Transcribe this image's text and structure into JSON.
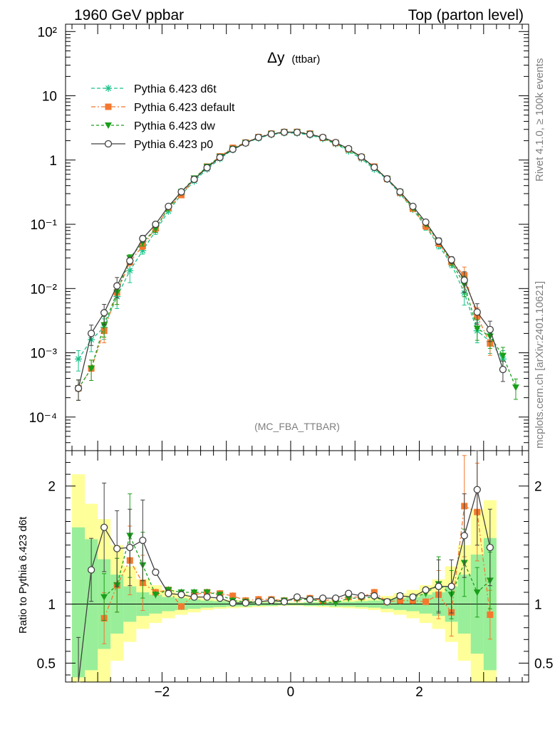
{
  "header": {
    "left": "1960 GeV ppbar",
    "right": "Top (parton level)"
  },
  "side": {
    "right_top": "Rivet 4.1.0, ≥ 100k events",
    "right_bottom": "mcplots.cern.ch [arXiv:2401.10621]"
  },
  "chart_data": {
    "type": "line",
    "title": "Δy",
    "title_sub": "(ttbar)",
    "watermark": "(MC_FBA_TTBAR)",
    "ratio_ylabel": "Ratio to Pythia 6.423 d6t",
    "xlim": [
      -3.5,
      3.7
    ],
    "ylim_log": [
      3e-05,
      130
    ],
    "ratio_ylim": [
      0.34,
      2.3
    ],
    "x_ticks": [
      "−2",
      "0",
      "2"
    ],
    "x_tick_values": [
      -2,
      0,
      2
    ],
    "y_ticks": [
      "10⁻⁴",
      "10⁻³",
      "10⁻²",
      "10⁻¹",
      "1",
      "10",
      "10²"
    ],
    "y_tick_values": [
      0.0001,
      0.001,
      0.01,
      0.1,
      1,
      10,
      100
    ],
    "ratio_ticks": [
      "0.5",
      "1",
      "2"
    ],
    "ratio_tick_values": [
      0.5,
      1,
      2
    ],
    "x": [
      -3.3,
      -3.1,
      -2.9,
      -2.7,
      -2.5,
      -2.3,
      -2.1,
      -1.9,
      -1.7,
      -1.5,
      -1.3,
      -1.1,
      -0.9,
      -0.7,
      -0.5,
      -0.3,
      -0.1,
      0.1,
      0.3,
      0.5,
      0.7,
      0.9,
      1.1,
      1.3,
      1.5,
      1.7,
      1.9,
      2.1,
      2.3,
      2.5,
      2.7,
      2.9,
      3.1,
      3.3,
      3.5
    ],
    "series": [
      {
        "name": "Pythia 6.423 d6t",
        "color": "#19c28a",
        "marker": "star",
        "values": [
          0.0008,
          0.0016,
          0.0025,
          0.0075,
          0.019,
          0.039,
          0.079,
          0.16,
          0.29,
          0.47,
          0.72,
          1.05,
          1.45,
          1.82,
          2.2,
          2.48,
          2.65,
          2.62,
          2.45,
          2.15,
          1.78,
          1.38,
          1.05,
          0.72,
          0.5,
          0.3,
          0.17,
          0.092,
          0.047,
          0.024,
          0.0085,
          0.0022,
          0.0015,
          0.0008,
          null
        ]
      },
      {
        "name": "Pythia 6.423 default",
        "color": "#f4782e",
        "marker": "square",
        "values": [
          0.00028,
          0.00057,
          0.0022,
          0.0087,
          0.026,
          0.046,
          0.087,
          0.18,
          0.285,
          0.51,
          0.79,
          1.14,
          1.55,
          1.87,
          2.28,
          2.58,
          2.73,
          2.74,
          2.58,
          2.22,
          1.85,
          1.47,
          1.11,
          0.79,
          0.51,
          0.31,
          0.175,
          0.094,
          0.051,
          0.026,
          0.016,
          0.0037,
          0.0014,
          null,
          null
        ]
      },
      {
        "name": "Pythia 6.423 dw",
        "color": "#1a9f1a",
        "marker": "triangle",
        "values": [
          0.00028,
          0.00057,
          0.0027,
          0.0087,
          0.03,
          0.052,
          0.085,
          0.18,
          0.32,
          0.52,
          0.79,
          1.13,
          1.5,
          1.85,
          2.25,
          2.55,
          2.72,
          2.72,
          2.55,
          2.2,
          1.8,
          1.45,
          1.1,
          0.76,
          0.51,
          0.32,
          0.18,
          0.1,
          0.055,
          0.026,
          0.0115,
          0.0024,
          0.0018,
          0.0009,
          0.00029
        ]
      },
      {
        "name": "Pythia 6.423 p0",
        "color": "#404040",
        "marker": "circle",
        "values": [
          0.00028,
          0.002,
          0.0042,
          0.011,
          0.027,
          0.06,
          0.1,
          0.19,
          0.32,
          0.5,
          0.76,
          1.1,
          1.47,
          1.84,
          2.25,
          2.54,
          2.71,
          2.7,
          2.52,
          2.25,
          1.87,
          1.5,
          1.12,
          0.77,
          0.51,
          0.32,
          0.19,
          0.108,
          0.055,
          0.028,
          0.0135,
          0.0043,
          0.0023,
          0.00055,
          null
        ]
      }
    ],
    "ratio": {
      "x": [
        -3.3,
        -3.1,
        -2.9,
        -2.7,
        -2.5,
        -2.3,
        -2.1,
        -1.9,
        -1.7,
        -1.5,
        -1.3,
        -1.1,
        -0.9,
        -0.7,
        -0.5,
        -0.3,
        -0.1,
        0.1,
        0.3,
        0.5,
        0.7,
        0.9,
        1.1,
        1.3,
        1.5,
        1.7,
        1.9,
        2.1,
        2.3,
        2.5,
        2.7,
        2.9,
        3.1
      ],
      "default": [
        null,
        null,
        0.88,
        1.16,
        1.37,
        1.18,
        1.1,
        1.12,
        0.98,
        1.08,
        1.1,
        1.09,
        1.07,
        1.03,
        1.04,
        1.04,
        1.03,
        1.05,
        1.05,
        1.03,
        1.04,
        1.06,
        1.06,
        1.1,
        1.02,
        1.03,
        1.03,
        1.02,
        1.08,
        0.93,
        1.83,
        1.78,
        0.91
      ],
      "dw": [
        null,
        null,
        1.06,
        1.16,
        1.58,
        1.33,
        1.08,
        1.12,
        1.1,
        1.1,
        1.1,
        1.08,
        1.03,
        1.02,
        1.02,
        1.03,
        1.03,
        1.04,
        1.04,
        1.02,
        1.01,
        1.05,
        1.05,
        1.06,
        1.02,
        1.07,
        1.06,
        1.09,
        1.17,
        1.08,
        1.35,
        1.1,
        1.2
      ],
      "p0": [
        0.34,
        1.29,
        1.65,
        1.47,
        1.48,
        1.54,
        1.27,
        1.09,
        1.08,
        1.06,
        1.06,
        1.05,
        1.01,
        1.01,
        1.02,
        1.03,
        1.02,
        1.06,
        1.04,
        1.05,
        1.05,
        1.09,
        1.07,
        1.07,
        1.02,
        1.07,
        1.06,
        1.12,
        1.15,
        1.15,
        1.58,
        1.97,
        1.48
      ],
      "band_edges": [
        -3.4,
        -3.2,
        -3.0,
        -2.8,
        -2.6,
        -2.4,
        -2.2,
        -2.0,
        -1.8,
        -1.6,
        -1.4,
        -1.2,
        -1.0,
        -0.8,
        -0.6,
        -0.4,
        -0.2,
        0.0,
        0.2,
        0.4,
        0.6,
        0.8,
        1.0,
        1.2,
        1.4,
        1.6,
        1.8,
        2.0,
        2.2,
        2.4,
        2.6,
        2.8,
        3.0,
        3.2
      ],
      "green_lo": [
        0.38,
        0.44,
        0.62,
        0.75,
        0.85,
        0.9,
        0.92,
        0.94,
        0.95,
        0.96,
        0.97,
        0.975,
        0.98,
        0.98,
        0.985,
        0.985,
        0.99,
        0.99,
        0.985,
        0.985,
        0.98,
        0.98,
        0.975,
        0.97,
        0.96,
        0.95,
        0.94,
        0.92,
        0.9,
        0.85,
        0.75,
        0.58,
        0.44
      ],
      "green_hi": [
        1.65,
        1.55,
        1.38,
        1.25,
        1.15,
        1.1,
        1.08,
        1.06,
        1.05,
        1.04,
        1.03,
        1.025,
        1.02,
        1.02,
        1.015,
        1.015,
        1.01,
        1.01,
        1.015,
        1.015,
        1.02,
        1.02,
        1.025,
        1.03,
        1.04,
        1.05,
        1.06,
        1.08,
        1.1,
        1.15,
        1.25,
        1.42,
        1.56
      ],
      "yellow_lo": [
        0.34,
        0.34,
        0.34,
        0.52,
        0.68,
        0.79,
        0.84,
        0.88,
        0.91,
        0.93,
        0.95,
        0.96,
        0.965,
        0.97,
        0.975,
        0.98,
        0.985,
        0.985,
        0.98,
        0.975,
        0.97,
        0.965,
        0.96,
        0.95,
        0.93,
        0.91,
        0.88,
        0.84,
        0.79,
        0.68,
        0.52,
        0.34,
        0.34
      ],
      "yellow_hi": [
        2.1,
        1.85,
        1.72,
        1.5,
        1.32,
        1.21,
        1.16,
        1.12,
        1.09,
        1.07,
        1.05,
        1.04,
        1.035,
        1.03,
        1.025,
        1.02,
        1.015,
        1.015,
        1.02,
        1.025,
        1.03,
        1.035,
        1.04,
        1.05,
        1.07,
        1.09,
        1.12,
        1.16,
        1.21,
        1.32,
        1.5,
        1.8,
        1.88
      ]
    }
  }
}
